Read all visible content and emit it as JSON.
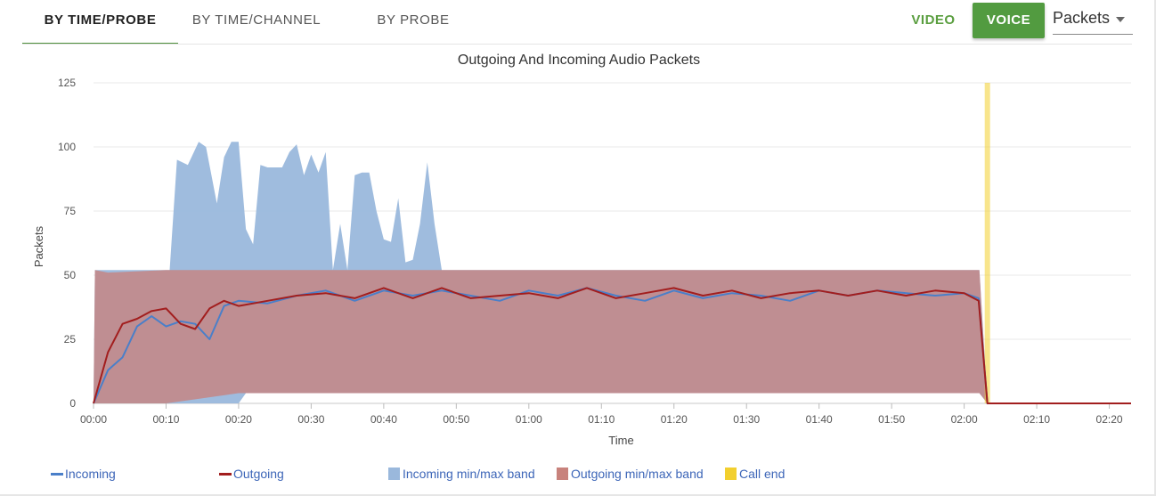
{
  "tabs": [
    {
      "label": "BY TIME/PROBE",
      "active": true
    },
    {
      "label": "BY TIME/CHANNEL",
      "active": false
    },
    {
      "label": "BY PROBE",
      "active": false
    }
  ],
  "media_toggle": {
    "video_label": "VIDEO",
    "voice_label": "VOICE",
    "selected": "VOICE"
  },
  "metric_select": {
    "value": "Packets"
  },
  "colors": {
    "incoming": "#4a7fc9",
    "outgoing": "#a21e1e",
    "incoming_band": "#9ab8dc",
    "outgoing_band": "#c8827c",
    "overlap_band": "#a07080",
    "call_end": "#f2cf2e",
    "accent_green": "#529b40"
  },
  "chart_data": {
    "type": "area",
    "title": "Outgoing And Incoming Audio Packets",
    "xlabel": "Time",
    "ylabel": "Packets",
    "ylim": [
      0,
      125
    ],
    "yticks": [
      0,
      25,
      50,
      75,
      100,
      125
    ],
    "xlim_minutes": [
      0,
      143
    ],
    "xticks": [
      "00:00",
      "00:10",
      "00:20",
      "00:30",
      "00:40",
      "00:50",
      "01:00",
      "01:10",
      "01:20",
      "01:30",
      "01:40",
      "01:50",
      "02:00",
      "02:10",
      "02:20"
    ],
    "grid": true,
    "legend_position": "bottom",
    "call_end_minute": 123.2,
    "series": [
      {
        "name": "Incoming",
        "kind": "line",
        "x_minutes": [
          0,
          2,
          4,
          6,
          8,
          10,
          12,
          14,
          16,
          18,
          20,
          24,
          28,
          32,
          36,
          40,
          44,
          48,
          52,
          56,
          60,
          64,
          68,
          72,
          76,
          80,
          84,
          88,
          92,
          96,
          100,
          104,
          108,
          112,
          116,
          120,
          122,
          123.2,
          143
        ],
        "values": [
          0,
          13,
          18,
          30,
          34,
          30,
          32,
          31,
          25,
          38,
          40,
          39,
          42,
          44,
          40,
          44,
          42,
          44,
          42,
          40,
          44,
          42,
          45,
          42,
          40,
          44,
          41,
          43,
          42,
          40,
          44,
          42,
          44,
          43,
          42,
          43,
          41,
          0,
          0
        ]
      },
      {
        "name": "Outgoing",
        "kind": "line",
        "x_minutes": [
          0,
          2,
          4,
          6,
          8,
          10,
          12,
          14,
          16,
          18,
          20,
          24,
          28,
          32,
          36,
          40,
          44,
          48,
          52,
          56,
          60,
          64,
          68,
          72,
          76,
          80,
          84,
          88,
          92,
          96,
          100,
          104,
          108,
          112,
          116,
          120,
          122,
          123.2,
          143
        ],
        "values": [
          0,
          20,
          31,
          33,
          36,
          37,
          31,
          29,
          37,
          40,
          38,
          40,
          42,
          43,
          41,
          45,
          41,
          45,
          41,
          42,
          43,
          41,
          45,
          41,
          43,
          45,
          42,
          44,
          41,
          43,
          44,
          42,
          44,
          42,
          44,
          43,
          40,
          0,
          0
        ]
      },
      {
        "name": "Incoming min/max band",
        "kind": "band",
        "x_minutes": [
          0,
          0.2,
          2,
          10.5,
          11.5,
          13,
          14.5,
          15.5,
          17,
          18,
          19,
          20,
          21,
          22,
          23,
          24,
          26,
          27,
          28,
          29,
          30,
          31,
          32,
          33,
          34,
          35,
          36,
          37,
          38,
          39,
          40,
          41,
          42,
          43,
          44,
          45,
          46,
          47,
          48,
          60,
          80,
          100,
          121.8,
          122.1,
          123.2
        ],
        "max": [
          0,
          52,
          52,
          52,
          95,
          93,
          102,
          100,
          78,
          96,
          102,
          102,
          68,
          62,
          93,
          92,
          92,
          98,
          101,
          89,
          97,
          90,
          98,
          52,
          70,
          52,
          89,
          90,
          90,
          75,
          64,
          63,
          80,
          55,
          56,
          70,
          94,
          70,
          52,
          52,
          52,
          52,
          52,
          52,
          0
        ],
        "min": [
          0,
          0,
          0,
          0,
          0,
          0,
          0,
          0,
          0,
          0,
          0,
          0,
          4,
          4,
          4,
          4,
          4,
          4,
          4,
          4,
          4,
          4,
          4,
          4,
          4,
          4,
          4,
          4,
          4,
          4,
          4,
          4,
          4,
          4,
          4,
          4,
          4,
          4,
          4,
          4,
          4,
          4,
          4,
          4,
          0
        ]
      },
      {
        "name": "Outgoing min/max band",
        "kind": "band",
        "x_minutes": [
          0,
          0.2,
          2,
          10,
          20,
          30,
          40,
          50,
          60,
          70,
          80,
          90,
          100,
          110,
          121.8,
          122.1,
          123.2
        ],
        "max": [
          0,
          52,
          51,
          52,
          52,
          52,
          52,
          52,
          52,
          52,
          52,
          52,
          52,
          52,
          52,
          52,
          0
        ],
        "min": [
          0,
          0,
          0,
          0,
          4,
          4,
          4,
          4,
          4,
          4,
          4,
          4,
          4,
          4,
          4,
          4,
          0
        ]
      }
    ],
    "legend": [
      "Incoming",
      "Outgoing",
      "Incoming min/max band",
      "Outgoing min/max band",
      "Call end"
    ]
  }
}
